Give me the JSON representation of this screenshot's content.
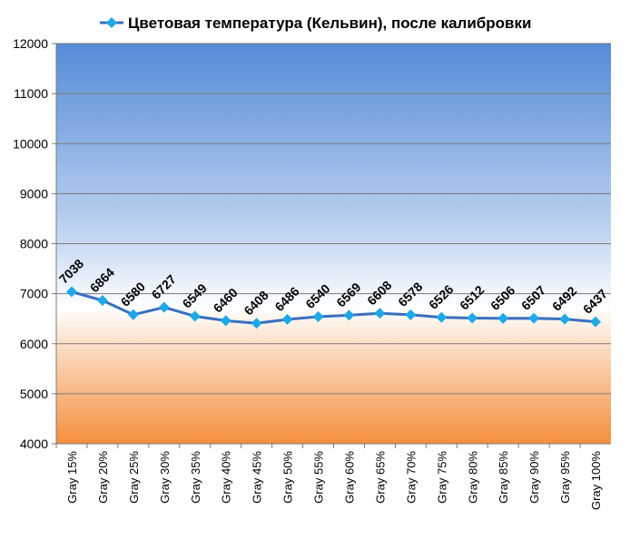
{
  "chart_data": {
    "type": "line",
    "title": "Цветовая температура (Кельвин), после калибровки",
    "legend": [
      {
        "name": "Цветовая температура (Кельвин), после калибровки",
        "color": "#3a6fc0",
        "marker": "diamond",
        "marker_color": "#1fa8e8"
      }
    ],
    "legend_placement": "top",
    "categories": [
      "Gray 15%",
      "Gray 20%",
      "Gray 25%",
      "Gray 30%",
      "Gray 35%",
      "Gray 40%",
      "Gray 45%",
      "Gray 50%",
      "Gray 55%",
      "Gray 60%",
      "Gray 65%",
      "Gray 70%",
      "Gray 75%",
      "Gray 80%",
      "Gray 85%",
      "Gray 90%",
      "Gray 95%",
      "Gray 100%"
    ],
    "series": [
      {
        "name": "Цветовая температура (Кельвин), после калибровки",
        "values": [
          7038,
          6864,
          6580,
          6727,
          6549,
          6460,
          6408,
          6486,
          6540,
          6569,
          6608,
          6578,
          6526,
          6512,
          6506,
          6507,
          6492,
          6437
        ]
      }
    ],
    "yticks": [
      "4000",
      "5000",
      "6000",
      "7000",
      "8000",
      "9000",
      "10000",
      "11000",
      "12000"
    ],
    "ylim": [
      4000,
      12000
    ],
    "grid": true,
    "xlabel": "",
    "ylabel": ""
  }
}
